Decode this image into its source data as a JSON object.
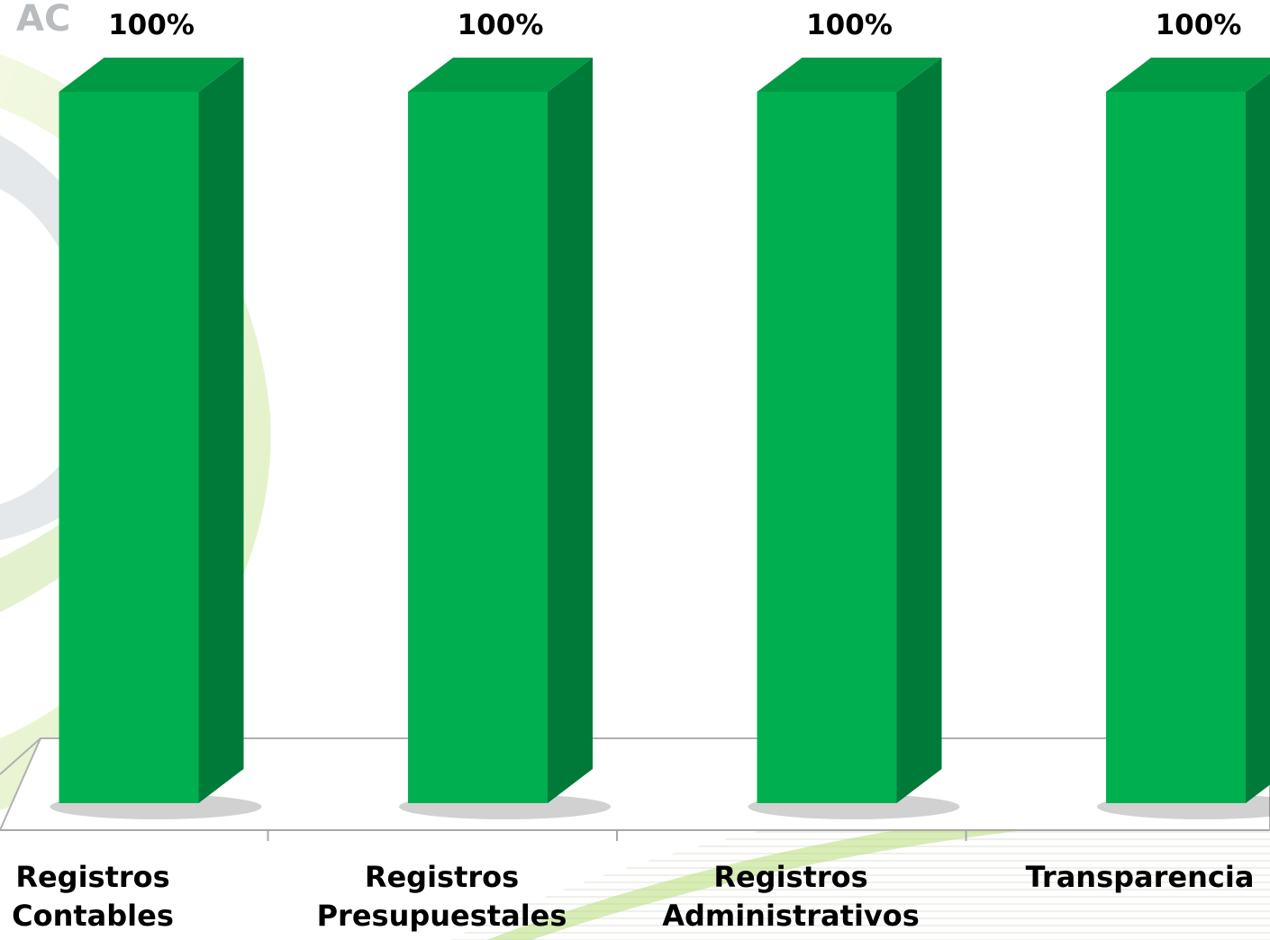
{
  "logo": {
    "text": "AC"
  },
  "chart_data": {
    "type": "bar",
    "categories": [
      [
        "Registros",
        "Contables"
      ],
      [
        "Registros",
        "Presupuestales"
      ],
      [
        "Registros",
        "Administrativos"
      ],
      [
        "Transparencia"
      ]
    ],
    "series": [
      {
        "values": [
          100,
          100,
          100,
          100
        ]
      }
    ],
    "data_labels": [
      "100%",
      "100%",
      "100%",
      "100%"
    ],
    "ylim": [
      0,
      100
    ],
    "grid": false,
    "legend": "none",
    "colors": {
      "front": "#00b050",
      "side": "#007a38",
      "top": "#009a45"
    }
  }
}
